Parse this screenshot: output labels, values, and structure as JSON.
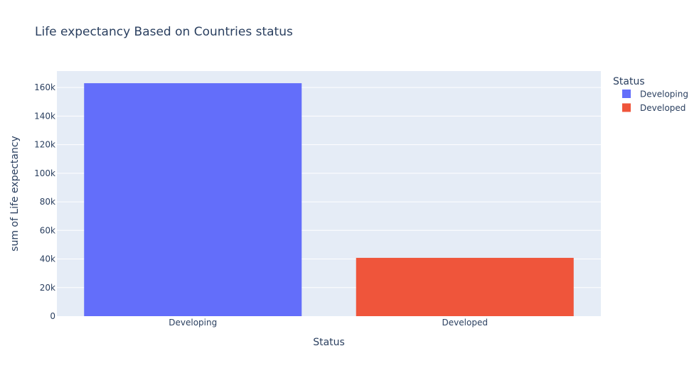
{
  "chart_data": {
    "type": "bar",
    "title": "Life expectancy Based on Countries status",
    "xlabel": "Status",
    "ylabel": "sum of Life expectancy",
    "categories": [
      "Developing",
      "Developed"
    ],
    "series": [
      {
        "name": "Developing",
        "category": "Developing",
        "value": 163000,
        "color": "#636efa"
      },
      {
        "name": "Developed",
        "category": "Developed",
        "value": 40800,
        "color": "#ef553b"
      }
    ],
    "ylim": [
      0,
      171500
    ],
    "yticks": [
      0,
      20000,
      40000,
      60000,
      80000,
      100000,
      120000,
      140000,
      160000
    ],
    "ytick_labels": [
      "0",
      "20k",
      "40k",
      "60k",
      "80k",
      "100k",
      "120k",
      "140k",
      "160k"
    ],
    "grid": true,
    "legend": {
      "title": "Status",
      "placement": "right"
    },
    "colors": {
      "plot_bg": "#e5ecf6",
      "grid": "#ffffff",
      "text": "#2a3f5f"
    }
  }
}
